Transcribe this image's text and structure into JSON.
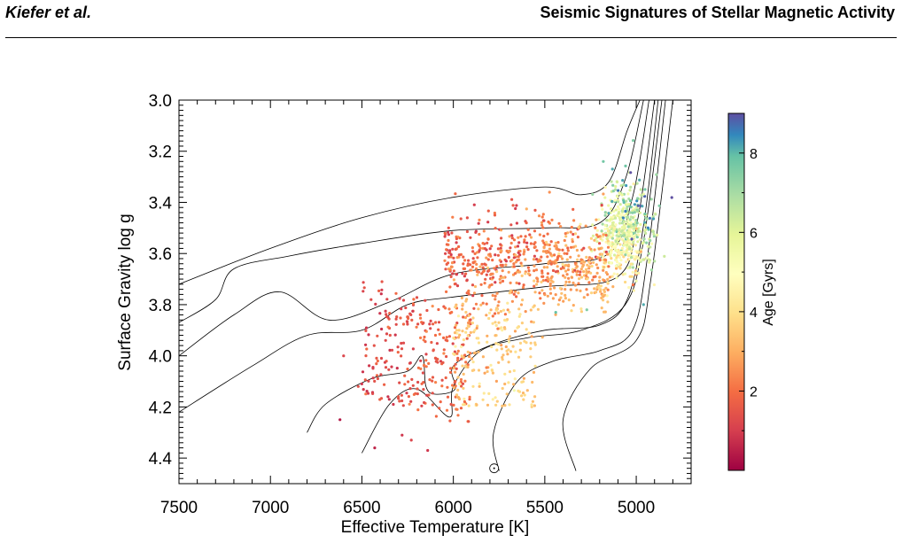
{
  "header": {
    "authors": "Kiefer et al.",
    "title": "Seismic Signatures of Stellar Magnetic Activity"
  },
  "chart_data": {
    "type": "scatter",
    "title": "",
    "xlabel": "Effective Temperature [K]",
    "ylabel": "Surface Gravity log g",
    "xlim": [
      7500,
      4700
    ],
    "ylim": [
      4.5,
      3.0
    ],
    "x_reversed": true,
    "y_reversed": true,
    "x_ticks": [
      7500,
      7000,
      6500,
      6000,
      5500,
      5000
    ],
    "x_tick_labels": [
      "7500",
      "7000",
      "6500",
      "6000",
      "5500",
      "5000"
    ],
    "y_ticks": [
      3.0,
      3.2,
      3.4,
      3.6,
      3.8,
      4.0,
      4.2,
      4.4
    ],
    "y_tick_labels": [
      "3.0",
      "3.2",
      "3.4",
      "3.6",
      "3.8",
      "4.0",
      "4.2",
      "4.4"
    ],
    "colorbar": {
      "label": "Age [Gyrs]",
      "range": [
        0,
        9
      ],
      "ticks": [
        2,
        4,
        6,
        8
      ],
      "tick_labels": [
        "2",
        "4",
        "6",
        "8"
      ],
      "colormap": "Spectral (red = young, blue = old)"
    },
    "grid": false,
    "sun": {
      "teff": 5777,
      "logg": 4.44
    },
    "evolutionary_tracks": [
      {
        "points": [
          [
            7500,
            3.72
          ],
          [
            7000,
            3.58
          ],
          [
            6500,
            3.46
          ],
          [
            6000,
            3.38
          ],
          [
            5500,
            3.34
          ],
          [
            5300,
            3.37
          ],
          [
            5150,
            3.32
          ],
          [
            5050,
            3.12
          ],
          [
            4980,
            3.0
          ]
        ]
      },
      {
        "points": [
          [
            7500,
            3.87
          ],
          [
            7300,
            3.78
          ],
          [
            7200,
            3.66
          ],
          [
            6900,
            3.61
          ],
          [
            6500,
            3.56
          ],
          [
            6000,
            3.51
          ],
          [
            5500,
            3.5
          ],
          [
            5200,
            3.48
          ],
          [
            5060,
            3.31
          ],
          [
            4960,
            3.0
          ]
        ]
      },
      {
        "points": [
          [
            7500,
            4.0
          ],
          [
            7200,
            3.84
          ],
          [
            6950,
            3.75
          ],
          [
            6680,
            3.86
          ],
          [
            6350,
            3.79
          ],
          [
            6000,
            3.68
          ],
          [
            5500,
            3.64
          ],
          [
            5150,
            3.6
          ],
          [
            5020,
            3.38
          ],
          [
            4930,
            3.0
          ]
        ]
      },
      {
        "points": [
          [
            7500,
            4.22
          ],
          [
            7100,
            4.04
          ],
          [
            6800,
            3.92
          ],
          [
            6500,
            3.9
          ],
          [
            6250,
            3.8
          ],
          [
            6000,
            3.77
          ],
          [
            5500,
            3.73
          ],
          [
            5100,
            3.69
          ],
          [
            4990,
            3.46
          ],
          [
            4900,
            3.0
          ]
        ]
      },
      {
        "points": [
          [
            6800,
            4.3
          ],
          [
            6700,
            4.19
          ],
          [
            6450,
            4.09
          ],
          [
            6250,
            4.06
          ],
          [
            6170,
            4.0
          ],
          [
            6150,
            4.12
          ],
          [
            6100,
            4.15
          ],
          [
            5990,
            4.13
          ],
          [
            6000,
            4.04
          ],
          [
            5800,
            3.96
          ],
          [
            5500,
            3.9
          ],
          [
            5200,
            3.88
          ],
          [
            5050,
            3.78
          ],
          [
            4960,
            3.49
          ],
          [
            4880,
            3.0
          ]
        ]
      },
      {
        "points": [
          [
            6500,
            4.38
          ],
          [
            6350,
            4.19
          ],
          [
            6200,
            4.13
          ],
          [
            6020,
            4.24
          ],
          [
            6000,
            4.12
          ],
          [
            5850,
            3.98
          ],
          [
            5600,
            3.93
          ],
          [
            5300,
            3.9
          ],
          [
            5060,
            3.8
          ],
          [
            4960,
            3.55
          ],
          [
            4860,
            3.0
          ]
        ]
      },
      {
        "points": [
          [
            5750,
            4.45
          ],
          [
            5780,
            4.3
          ],
          [
            5650,
            4.1
          ],
          [
            5450,
            4.02
          ],
          [
            5200,
            3.98
          ],
          [
            5020,
            3.9
          ],
          [
            4940,
            3.62
          ],
          [
            4840,
            3.0
          ]
        ]
      },
      {
        "points": [
          [
            5330,
            4.45
          ],
          [
            5400,
            4.25
          ],
          [
            5250,
            4.05
          ],
          [
            5000,
            3.94
          ],
          [
            4920,
            3.7
          ],
          [
            4800,
            3.0
          ]
        ]
      }
    ]
  }
}
